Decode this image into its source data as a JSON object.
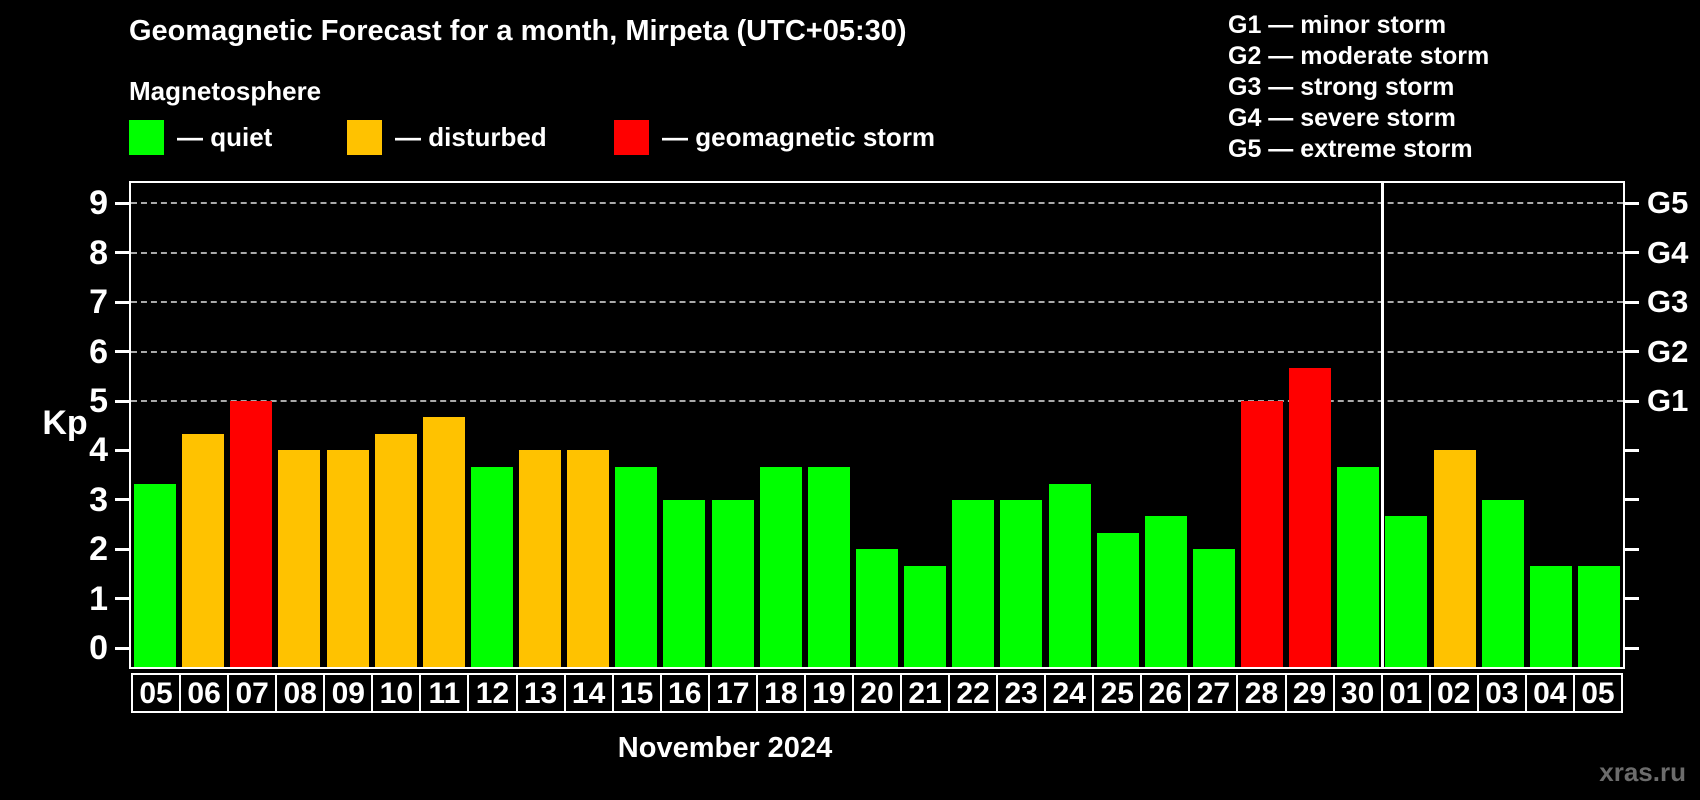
{
  "header": {
    "title": "Geomagnetic Forecast for a month, Mirpeta (UTC+05:30)",
    "subtitle": "Magnetosphere"
  },
  "legend": {
    "items": [
      {
        "name": "quiet",
        "label": "— quiet",
        "color": "#00ff00"
      },
      {
        "name": "disturbed",
        "label": "— disturbed",
        "color": "#ffc200"
      },
      {
        "name": "storm",
        "label": "— geomagnetic storm",
        "color": "#ff0000"
      }
    ]
  },
  "storm_scale_legend": {
    "items": [
      "G1 — minor storm",
      "G2 — moderate storm",
      "G3 — strong storm",
      "G4 — severe storm",
      "G5 — extreme storm"
    ]
  },
  "chart_data": {
    "type": "bar",
    "title": "Geomagnetic Forecast for a month, Mirpeta (UTC+05:30)",
    "ylabel": "Kp",
    "xlabel": "November 2024",
    "ylim": [
      0,
      9.4
    ],
    "yticks": [
      0,
      1,
      2,
      3,
      4,
      5,
      6,
      7,
      8,
      9
    ],
    "gridlines_at": [
      5,
      6,
      7,
      8,
      9
    ],
    "grid_style": "dashed",
    "right_axis_labels": {
      "5": "G1",
      "6": "G2",
      "7": "G3",
      "8": "G4",
      "9": "G5"
    },
    "categories": [
      "05",
      "06",
      "07",
      "08",
      "09",
      "10",
      "11",
      "12",
      "13",
      "14",
      "15",
      "16",
      "17",
      "18",
      "19",
      "20",
      "21",
      "22",
      "23",
      "24",
      "25",
      "26",
      "27",
      "28",
      "29",
      "30",
      "01",
      "02",
      "03",
      "04",
      "05"
    ],
    "values": [
      3.33,
      4.33,
      5.0,
      4.0,
      4.0,
      4.33,
      4.67,
      3.67,
      4.0,
      4.0,
      3.67,
      3.0,
      3.0,
      3.67,
      3.67,
      2.0,
      1.67,
      3.0,
      3.0,
      3.33,
      2.33,
      2.67,
      2.0,
      5.0,
      5.67,
      3.67,
      2.67,
      4.0,
      3.0,
      1.67,
      1.67
    ],
    "statuses": [
      "quiet",
      "disturbed",
      "storm",
      "disturbed",
      "disturbed",
      "disturbed",
      "disturbed",
      "quiet",
      "disturbed",
      "disturbed",
      "quiet",
      "quiet",
      "quiet",
      "quiet",
      "quiet",
      "quiet",
      "quiet",
      "quiet",
      "quiet",
      "quiet",
      "quiet",
      "quiet",
      "quiet",
      "storm",
      "storm",
      "quiet",
      "quiet",
      "disturbed",
      "quiet",
      "quiet",
      "quiet"
    ],
    "status_colors": {
      "quiet": "#00ff00",
      "disturbed": "#ffc200",
      "storm": "#ff0000"
    },
    "month_separator_after_index": 25,
    "legend_position": "top"
  },
  "footer": {
    "month_label": "November 2024",
    "watermark": "xras.ru"
  }
}
